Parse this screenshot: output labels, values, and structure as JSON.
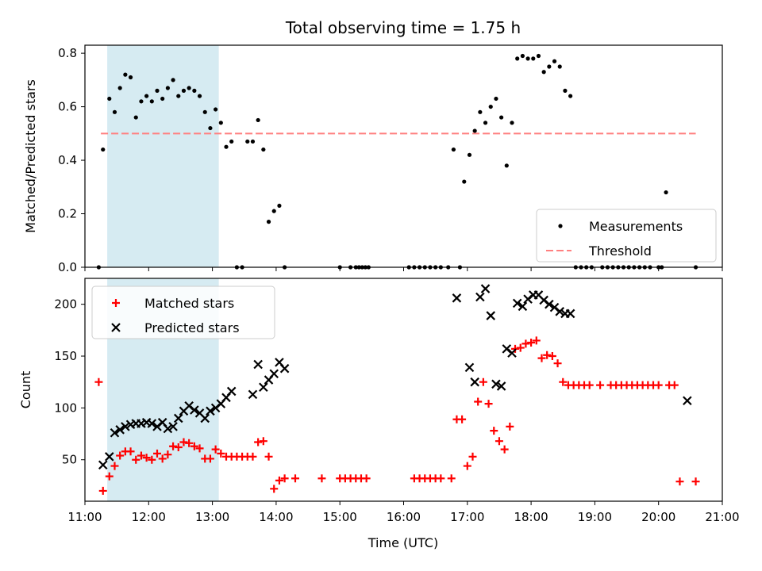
{
  "title": "Total observing time = 1.75 h",
  "xlabel": "Time (UTC)",
  "colors": {
    "shade": "#add8e6",
    "matched": "#ff0000",
    "predicted": "#000000",
    "threshold": "#ff8080"
  },
  "chart_data": [
    {
      "type": "scatter",
      "title": "Total observing time = 1.75 h",
      "xlabel": "",
      "ylabel": "Matched/Predicted stars",
      "xlim": [
        "11:00",
        "21:00"
      ],
      "ylim": [
        0,
        0.83
      ],
      "xticks": [
        "11:00",
        "12:00",
        "13:00",
        "14:00",
        "15:00",
        "16:00",
        "17:00",
        "18:00",
        "19:00",
        "20:00",
        "21:00"
      ],
      "yticks": [
        "0.0",
        "0.2",
        "0.4",
        "0.6",
        "0.8"
      ],
      "shaded_interval": [
        "11:21",
        "13:06"
      ],
      "legend": {
        "position": "lower right",
        "entries": [
          "Measurements",
          "Threshold"
        ]
      },
      "threshold": {
        "name": "Threshold",
        "y": 0.5,
        "x": [
          "11:15",
          "20:35"
        ]
      },
      "series": [
        {
          "name": "Measurements",
          "marker": "dot",
          "points": [
            [
              "11:13",
              0.0
            ],
            [
              "11:17",
              0.44
            ],
            [
              "11:23",
              0.63
            ],
            [
              "11:28",
              0.58
            ],
            [
              "11:33",
              0.67
            ],
            [
              "11:38",
              0.72
            ],
            [
              "11:43",
              0.71
            ],
            [
              "11:48",
              0.56
            ],
            [
              "11:53",
              0.62
            ],
            [
              "11:58",
              0.64
            ],
            [
              "12:03",
              0.62
            ],
            [
              "12:08",
              0.66
            ],
            [
              "12:13",
              0.63
            ],
            [
              "12:18",
              0.67
            ],
            [
              "12:23",
              0.7
            ],
            [
              "12:28",
              0.64
            ],
            [
              "12:33",
              0.66
            ],
            [
              "12:38",
              0.67
            ],
            [
              "12:43",
              0.66
            ],
            [
              "12:48",
              0.64
            ],
            [
              "12:53",
              0.58
            ],
            [
              "12:58",
              0.52
            ],
            [
              "13:03",
              0.59
            ],
            [
              "13:08",
              0.54
            ],
            [
              "13:13",
              0.45
            ],
            [
              "13:18",
              0.47
            ],
            [
              "13:23",
              0.0
            ],
            [
              "13:28",
              0.0
            ],
            [
              "13:33",
              0.47
            ],
            [
              "13:38",
              0.47
            ],
            [
              "13:43",
              0.55
            ],
            [
              "13:48",
              0.44
            ],
            [
              "13:53",
              0.17
            ],
            [
              "13:58",
              0.21
            ],
            [
              "14:03",
              0.23
            ],
            [
              "14:08",
              0.0
            ],
            [
              "15:00",
              0.0
            ],
            [
              "15:10",
              0.0
            ],
            [
              "15:15",
              0.0
            ],
            [
              "15:18",
              0.0
            ],
            [
              "15:21",
              0.0
            ],
            [
              "15:24",
              0.0
            ],
            [
              "15:27",
              0.0
            ],
            [
              "16:05",
              0.0
            ],
            [
              "16:10",
              0.0
            ],
            [
              "16:15",
              0.0
            ],
            [
              "16:20",
              0.0
            ],
            [
              "16:25",
              0.0
            ],
            [
              "16:30",
              0.0
            ],
            [
              "16:35",
              0.0
            ],
            [
              "16:42",
              0.0
            ],
            [
              "16:47",
              0.44
            ],
            [
              "16:53",
              0.0
            ],
            [
              "16:57",
              0.32
            ],
            [
              "17:02",
              0.42
            ],
            [
              "17:07",
              0.51
            ],
            [
              "17:12",
              0.58
            ],
            [
              "17:17",
              0.54
            ],
            [
              "17:22",
              0.6
            ],
            [
              "17:27",
              0.63
            ],
            [
              "17:32",
              0.56
            ],
            [
              "17:37",
              0.38
            ],
            [
              "17:42",
              0.54
            ],
            [
              "17:47",
              0.78
            ],
            [
              "17:52",
              0.79
            ],
            [
              "17:57",
              0.78
            ],
            [
              "18:02",
              0.78
            ],
            [
              "18:07",
              0.79
            ],
            [
              "18:12",
              0.73
            ],
            [
              "18:17",
              0.75
            ],
            [
              "18:22",
              0.77
            ],
            [
              "18:27",
              0.75
            ],
            [
              "18:32",
              0.66
            ],
            [
              "18:37",
              0.64
            ],
            [
              "18:42",
              0.0
            ],
            [
              "18:47",
              0.0
            ],
            [
              "18:52",
              0.0
            ],
            [
              "18:57",
              0.0
            ],
            [
              "19:07",
              0.0
            ],
            [
              "19:12",
              0.0
            ],
            [
              "19:17",
              0.0
            ],
            [
              "19:22",
              0.0
            ],
            [
              "19:27",
              0.0
            ],
            [
              "19:32",
              0.0
            ],
            [
              "19:37",
              0.0
            ],
            [
              "19:42",
              0.0
            ],
            [
              "19:47",
              0.0
            ],
            [
              "19:52",
              0.0
            ],
            [
              "20:00",
              0.0
            ],
            [
              "20:03",
              0.0
            ],
            [
              "20:07",
              0.28
            ],
            [
              "20:35",
              0.0
            ]
          ]
        }
      ]
    },
    {
      "type": "scatter",
      "title": "",
      "xlabel": "Time (UTC)",
      "ylabel": "Count",
      "xlim": [
        "11:00",
        "21:00"
      ],
      "ylim": [
        10,
        225
      ],
      "xticks": [
        "11:00",
        "12:00",
        "13:00",
        "14:00",
        "15:00",
        "16:00",
        "17:00",
        "18:00",
        "19:00",
        "20:00",
        "21:00"
      ],
      "yticks": [
        "50",
        "100",
        "150",
        "200"
      ],
      "shaded_interval": [
        "11:21",
        "13:06"
      ],
      "legend": {
        "position": "upper left",
        "entries": [
          "Matched stars",
          "Predicted stars"
        ]
      },
      "series": [
        {
          "name": "Matched stars",
          "marker": "plus",
          "points": [
            [
              "11:13",
              125
            ],
            [
              "11:17",
              20
            ],
            [
              "11:23",
              34
            ],
            [
              "11:28",
              44
            ],
            [
              "11:33",
              54
            ],
            [
              "11:38",
              58
            ],
            [
              "11:43",
              58
            ],
            [
              "11:48",
              50
            ],
            [
              "11:53",
              54
            ],
            [
              "11:58",
              52
            ],
            [
              "12:03",
              50
            ],
            [
              "12:08",
              56
            ],
            [
              "12:13",
              51
            ],
            [
              "12:18",
              55
            ],
            [
              "12:23",
              63
            ],
            [
              "12:28",
              62
            ],
            [
              "12:33",
              67
            ],
            [
              "12:38",
              66
            ],
            [
              "12:43",
              63
            ],
            [
              "12:48",
              61
            ],
            [
              "12:53",
              51
            ],
            [
              "12:58",
              51
            ],
            [
              "13:03",
              60
            ],
            [
              "13:08",
              56
            ],
            [
              "13:13",
              53
            ],
            [
              "13:18",
              53
            ],
            [
              "13:23",
              53
            ],
            [
              "13:28",
              53
            ],
            [
              "13:33",
              53
            ],
            [
              "13:38",
              53
            ],
            [
              "13:43",
              67
            ],
            [
              "13:48",
              68
            ],
            [
              "13:53",
              53
            ],
            [
              "13:58",
              22
            ],
            [
              "14:03",
              30
            ],
            [
              "14:08",
              32
            ],
            [
              "14:18",
              32
            ],
            [
              "14:43",
              32
            ],
            [
              "15:00",
              32
            ],
            [
              "15:05",
              32
            ],
            [
              "15:10",
              32
            ],
            [
              "15:15",
              32
            ],
            [
              "15:20",
              32
            ],
            [
              "15:25",
              32
            ],
            [
              "16:10",
              32
            ],
            [
              "16:15",
              32
            ],
            [
              "16:20",
              32
            ],
            [
              "16:25",
              32
            ],
            [
              "16:30",
              32
            ],
            [
              "16:35",
              32
            ],
            [
              "16:45",
              32
            ],
            [
              "16:50",
              89
            ],
            [
              "16:55",
              89
            ],
            [
              "17:00",
              44
            ],
            [
              "17:05",
              53
            ],
            [
              "17:10",
              106
            ],
            [
              "17:15",
              125
            ],
            [
              "17:20",
              104
            ],
            [
              "17:25",
              78
            ],
            [
              "17:30",
              68
            ],
            [
              "17:35",
              60
            ],
            [
              "17:40",
              82
            ],
            [
              "17:45",
              157
            ],
            [
              "17:50",
              158
            ],
            [
              "17:55",
              162
            ],
            [
              "18:00",
              163
            ],
            [
              "18:05",
              165
            ],
            [
              "18:10",
              148
            ],
            [
              "18:15",
              151
            ],
            [
              "18:20",
              150
            ],
            [
              "18:25",
              143
            ],
            [
              "18:30",
              125
            ],
            [
              "18:35",
              122
            ],
            [
              "18:40",
              122
            ],
            [
              "18:45",
              122
            ],
            [
              "18:50",
              122
            ],
            [
              "18:55",
              122
            ],
            [
              "19:05",
              122
            ],
            [
              "19:15",
              122
            ],
            [
              "19:20",
              122
            ],
            [
              "19:25",
              122
            ],
            [
              "19:30",
              122
            ],
            [
              "19:35",
              122
            ],
            [
              "19:40",
              122
            ],
            [
              "19:45",
              122
            ],
            [
              "19:50",
              122
            ],
            [
              "19:55",
              122
            ],
            [
              "20:00",
              122
            ],
            [
              "20:10",
              122
            ],
            [
              "20:15",
              122
            ],
            [
              "20:20",
              29
            ],
            [
              "20:35",
              29
            ]
          ]
        },
        {
          "name": "Predicted stars",
          "marker": "x",
          "points": [
            [
              "11:17",
              45
            ],
            [
              "11:23",
              53
            ],
            [
              "11:28",
              76
            ],
            [
              "11:33",
              79
            ],
            [
              "11:38",
              82
            ],
            [
              "11:43",
              84
            ],
            [
              "11:48",
              85
            ],
            [
              "11:53",
              85
            ],
            [
              "11:58",
              86
            ],
            [
              "12:03",
              85
            ],
            [
              "12:08",
              82
            ],
            [
              "12:13",
              86
            ],
            [
              "12:18",
              80
            ],
            [
              "12:23",
              82
            ],
            [
              "12:28",
              90
            ],
            [
              "12:33",
              97
            ],
            [
              "12:38",
              102
            ],
            [
              "12:43",
              98
            ],
            [
              "12:48",
              95
            ],
            [
              "12:53",
              90
            ],
            [
              "12:58",
              97
            ],
            [
              "13:03",
              100
            ],
            [
              "13:08",
              104
            ],
            [
              "13:13",
              110
            ],
            [
              "13:18",
              116
            ],
            [
              "13:38",
              113
            ],
            [
              "13:43",
              142
            ],
            [
              "13:48",
              120
            ],
            [
              "13:53",
              127
            ],
            [
              "13:58",
              133
            ],
            [
              "14:03",
              144
            ],
            [
              "14:08",
              138
            ],
            [
              "16:50",
              206
            ],
            [
              "17:02",
              139
            ],
            [
              "17:07",
              125
            ],
            [
              "17:12",
              207
            ],
            [
              "17:17",
              215
            ],
            [
              "17:22",
              189
            ],
            [
              "17:27",
              123
            ],
            [
              "17:32",
              121
            ],
            [
              "17:37",
              157
            ],
            [
              "17:42",
              153
            ],
            [
              "17:47",
              201
            ],
            [
              "17:52",
              198
            ],
            [
              "17:57",
              205
            ],
            [
              "18:02",
              209
            ],
            [
              "18:07",
              209
            ],
            [
              "18:12",
              204
            ],
            [
              "18:17",
              200
            ],
            [
              "18:22",
              197
            ],
            [
              "18:27",
              193
            ],
            [
              "18:32",
              191
            ],
            [
              "18:37",
              191
            ],
            [
              "20:27",
              107
            ]
          ]
        }
      ]
    }
  ]
}
